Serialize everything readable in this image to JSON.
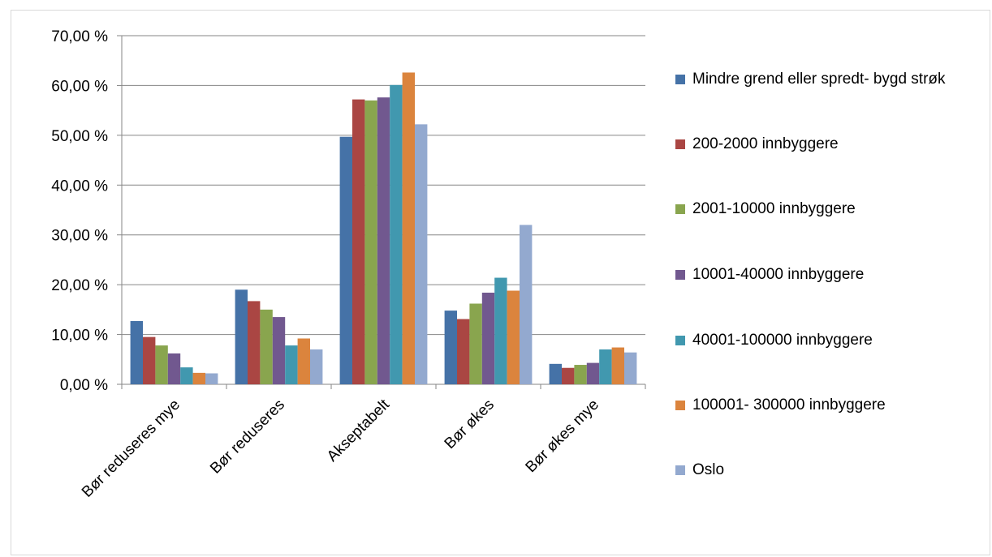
{
  "chart_data": {
    "type": "bar",
    "categories": [
      "Bør reduseres mye",
      "Bør reduseres",
      "Akseptabelt",
      "Bør økes",
      "Bør økes mye"
    ],
    "series": [
      {
        "name": "Mindre grend  eller spredt- bygd strøk",
        "color": "#4572A7",
        "values": [
          12.7,
          19.0,
          49.7,
          14.8,
          4.1
        ]
      },
      {
        "name": "200-2000  innbyggere",
        "color": "#AA4643",
        "values": [
          9.5,
          16.7,
          57.2,
          13.1,
          3.3
        ]
      },
      {
        "name": "2001-10000 innbyggere",
        "color": "#89A54E",
        "values": [
          7.8,
          15.0,
          57.0,
          16.2,
          3.9
        ]
      },
      {
        "name": "10001-40000 innbyggere",
        "color": "#71588F",
        "values": [
          6.2,
          13.5,
          57.6,
          18.4,
          4.3
        ]
      },
      {
        "name": "40001-100000 innbyggere",
        "color": "#4198AF",
        "values": [
          3.4,
          7.8,
          60.1,
          21.4,
          7.0
        ]
      },
      {
        "name": "100001- 300000 innbyggere",
        "color": "#DB843D",
        "values": [
          2.3,
          9.2,
          62.6,
          18.8,
          7.4
        ]
      },
      {
        "name": "Oslo",
        "color": "#93A9CF",
        "values": [
          2.2,
          7.0,
          52.2,
          32.0,
          6.4
        ]
      }
    ],
    "yticks": [
      "0,00 %",
      "10,00 %",
      "20,00 %",
      "30,00 %",
      "40,00 %",
      "50,00 %",
      "60,00 %",
      "70,00 %"
    ],
    "ylim": [
      0,
      70
    ],
    "grid": true,
    "legend_position": "right",
    "title": "",
    "xlabel": "",
    "ylabel": ""
  }
}
